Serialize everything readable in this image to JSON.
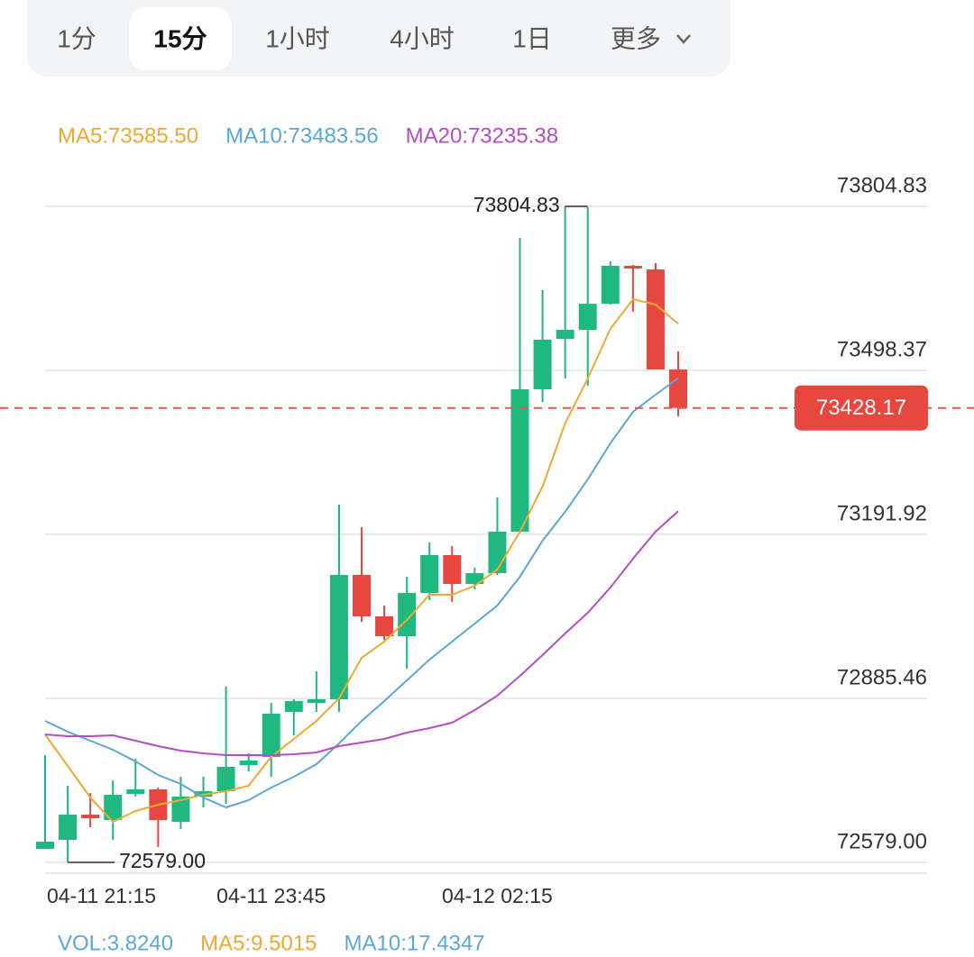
{
  "tabs": [
    "1分",
    "15分",
    "1小时",
    "4小时",
    "1日",
    "更多"
  ],
  "active_tab": 1,
  "chart_data": {
    "type": "candlestick",
    "categories": [
      "04-11 21:15",
      null,
      null,
      null,
      null,
      null,
      null,
      null,
      null,
      null,
      "04-11 23:45",
      null,
      null,
      null,
      null,
      null,
      null,
      null,
      null,
      null,
      "04-12 02:15",
      null,
      null,
      null,
      null,
      null,
      null,
      null,
      null
    ],
    "open": [
      72604.3,
      72621.1,
      72668.2,
      72658.1,
      72707.0,
      72715.4,
      72654.8,
      72701.9,
      72712.0,
      72760.8,
      72776.0,
      72860.2,
      72877.0,
      72883.8,
      73116.1,
      73038.7,
      73001.6,
      73082.4,
      73153.2,
      73099.3,
      73119.5,
      73196.9,
      73463.0,
      73557.3,
      73574.1,
      73622.9,
      73693.7,
      73686.9,
      73500.0
    ],
    "high": [
      72779.4,
      72722.1,
      72708.6,
      72732.2,
      72772.6,
      72718.7,
      72739.0,
      72739.0,
      72907.3,
      72782.7,
      72877.0,
      72883.8,
      72936.0,
      73247.5,
      73205.4,
      73058.9,
      73112.8,
      73176.7,
      73170.0,
      73129.6,
      73260.9,
      73745.9,
      73648.2,
      73804.83,
      73803.1,
      73702.1,
      73695.4,
      73698.7,
      73533.7
    ],
    "low": [
      72604.3,
      72579.0,
      72644.7,
      72621.1,
      72701.9,
      72607.6,
      72641.3,
      72681.7,
      72688.4,
      72749.1,
      72739.0,
      72816.4,
      72860.2,
      72860.2,
      73028.6,
      72994.9,
      72941.0,
      73069.0,
      73065.6,
      73089.2,
      73116.1,
      73193.6,
      73439.4,
      73483.2,
      73469.7,
      73621.3,
      73607.8,
      73500.0,
      73412.5
    ],
    "close": [
      72617.7,
      72668.2,
      72661.5,
      72705.3,
      72715.4,
      72658.1,
      72701.9,
      72712.0,
      72757.5,
      72769.3,
      72856.8,
      72880.4,
      72883.8,
      73116.1,
      73038.7,
      73001.6,
      73082.4,
      73153.2,
      73099.3,
      73119.5,
      73196.9,
      73463.0,
      73555.6,
      73574.1,
      73622.9,
      73693.7,
      73688.6,
      73500.0,
      73428.17
    ],
    "up_color": "#1fb980",
    "down_color": "#e8473f",
    "series": [
      {
        "label": "MA5:73585.50",
        "color": "#f0a833",
        "values": [
          72818.1,
          72759.2,
          72700.2,
          72654.8,
          72675.0,
          72686.8,
          72695.2,
          72705.3,
          72712.0,
          72722.1,
          72776.0,
          72809.7,
          72843.4,
          72885.5,
          72961.2,
          72991.5,
          73031.9,
          73079.1,
          73079.1,
          73095.9,
          73126.2,
          73197.0,
          73281.1,
          73399.0,
          73483.2,
          73575.8,
          73631.4,
          73621.3,
          73585.5
        ]
      },
      {
        "label": "MA10:73483.56",
        "color": "#5aa8da",
        "values": [
          72843.4,
          72823.2,
          72806.3,
          72789.5,
          72767.6,
          72742.3,
          72725.5,
          72700.2,
          72681.7,
          72695.2,
          72718.8,
          72739.0,
          72762.5,
          72801.3,
          72843.4,
          72880.4,
          72919.1,
          72957.9,
          72991.5,
          73025.2,
          73058.9,
          73112.8,
          73180.1,
          73234.0,
          73294.6,
          73362.0,
          73420.9,
          73452.9,
          73483.56
        ]
      },
      {
        "label": "MA20:73235.38",
        "color": "#b24fc4",
        "values": [
          72818.1,
          72814.7,
          72814.7,
          72816.4,
          72806.3,
          72796.2,
          72787.8,
          72782.7,
          72779.4,
          72779.4,
          72779.4,
          72781.1,
          72784.4,
          72796.2,
          72802.9,
          72809.7,
          72821.5,
          72829.9,
          72840.0,
          72863.6,
          72890.5,
          72927.5,
          72966.3,
          73006.7,
          73045.4,
          73092.6,
          73146.4,
          73197.0,
          73235.38
        ]
      }
    ],
    "ylim": [
      72560.5,
      73828.4
    ],
    "yticks": [
      73804.83,
      73498.37,
      73191.92,
      72885.46,
      {
        "value": 72579,
        "label": "72579.00"
      }
    ],
    "grid": true,
    "last_price": 73428.17,
    "high_marker": 73804.83,
    "low_marker": {
      "value": 72579,
      "label": "72579.00"
    },
    "volume_legend": [
      {
        "label": "VOL:3.8240",
        "color": "#5aa8da"
      },
      {
        "label": "MA5:9.5015",
        "color": "#f0a833"
      },
      {
        "label": "MA10:17.4347",
        "color": "#5aa8da"
      }
    ]
  }
}
